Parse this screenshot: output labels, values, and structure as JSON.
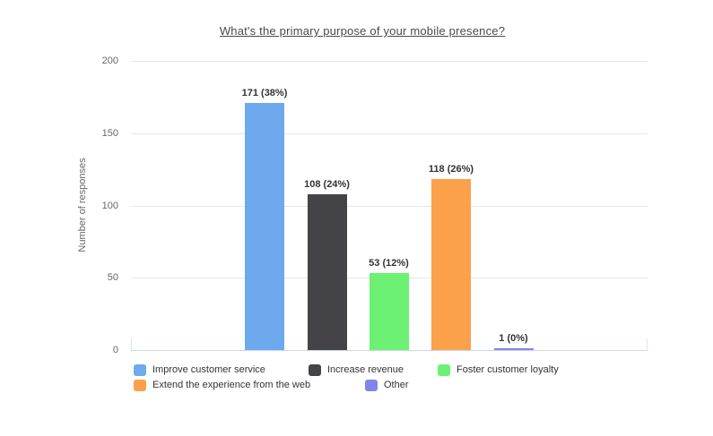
{
  "chart": {
    "title": "What's the primary purpose of your mobile presence?",
    "y_axis_title": "Number of responses"
  },
  "chart_data": {
    "type": "bar",
    "title": "What's the primary purpose of your mobile presence?",
    "xlabel": "",
    "ylabel": "Number of responses",
    "ylim": [
      0,
      200
    ],
    "yticks": [
      0,
      50,
      100,
      150,
      200
    ],
    "grid": true,
    "legend_position": "bottom",
    "categories": [
      "Improve customer service",
      "Increase revenue",
      "Foster customer loyalty",
      "Extend the experience from the web",
      "Other"
    ],
    "values": [
      171,
      108,
      53,
      118,
      1
    ],
    "data_labels": [
      "171 (38%)",
      "108 (24%)",
      "53 (12%)",
      "118 (26%)",
      "1 (0%)"
    ],
    "colors": [
      "#6EA9ED",
      "#434348",
      "#6DF175",
      "#FBA14B",
      "#8085E9"
    ],
    "gridline_color": "#e6e6e6",
    "axis_line_color": "#ccd6eb",
    "label_color": "#333333",
    "tick_label_color": "#666666"
  }
}
